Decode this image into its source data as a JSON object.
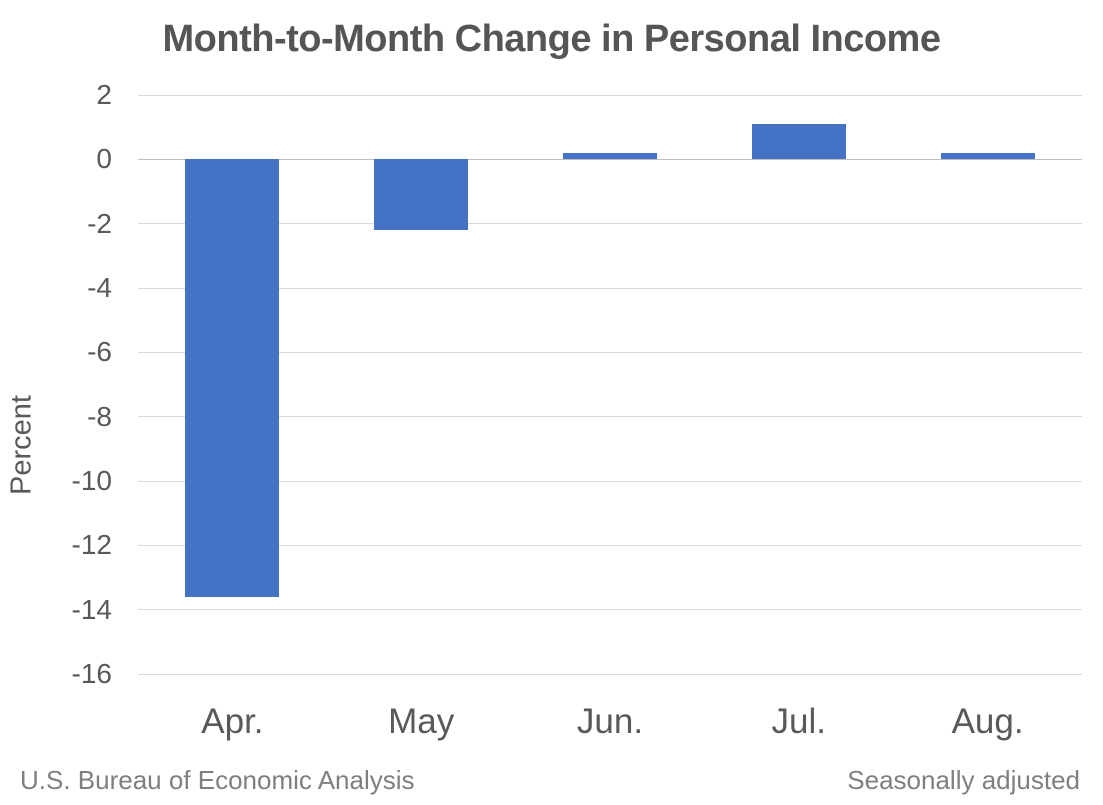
{
  "title": "Month-to-Month Change in Personal Income",
  "footer": {
    "left": "U.S. Bureau of Economic Analysis",
    "right": "Seasonally adjusted"
  },
  "chart_data": {
    "type": "bar",
    "title": "Month-to-Month Change in Personal Income",
    "categories": [
      "Apr.",
      "May",
      "Jun.",
      "Jul.",
      "Aug."
    ],
    "values": [
      -13.6,
      -2.2,
      0.2,
      1.1,
      0.2
    ],
    "xlabel": "",
    "ylabel": "Percent",
    "ylim": [
      -16,
      2
    ],
    "yticks": [
      2,
      0,
      -2,
      -4,
      -6,
      -8,
      -10,
      -12,
      -14,
      -16
    ],
    "grid": true,
    "legend": "none",
    "bar_color": "#4472C4",
    "gridline_color": "#D9D9D9",
    "zero_line_color": "#BFBFBF",
    "axis_text_color": "#595959",
    "title_color": "#555555",
    "footer_text_color": "#7F7F7F"
  }
}
